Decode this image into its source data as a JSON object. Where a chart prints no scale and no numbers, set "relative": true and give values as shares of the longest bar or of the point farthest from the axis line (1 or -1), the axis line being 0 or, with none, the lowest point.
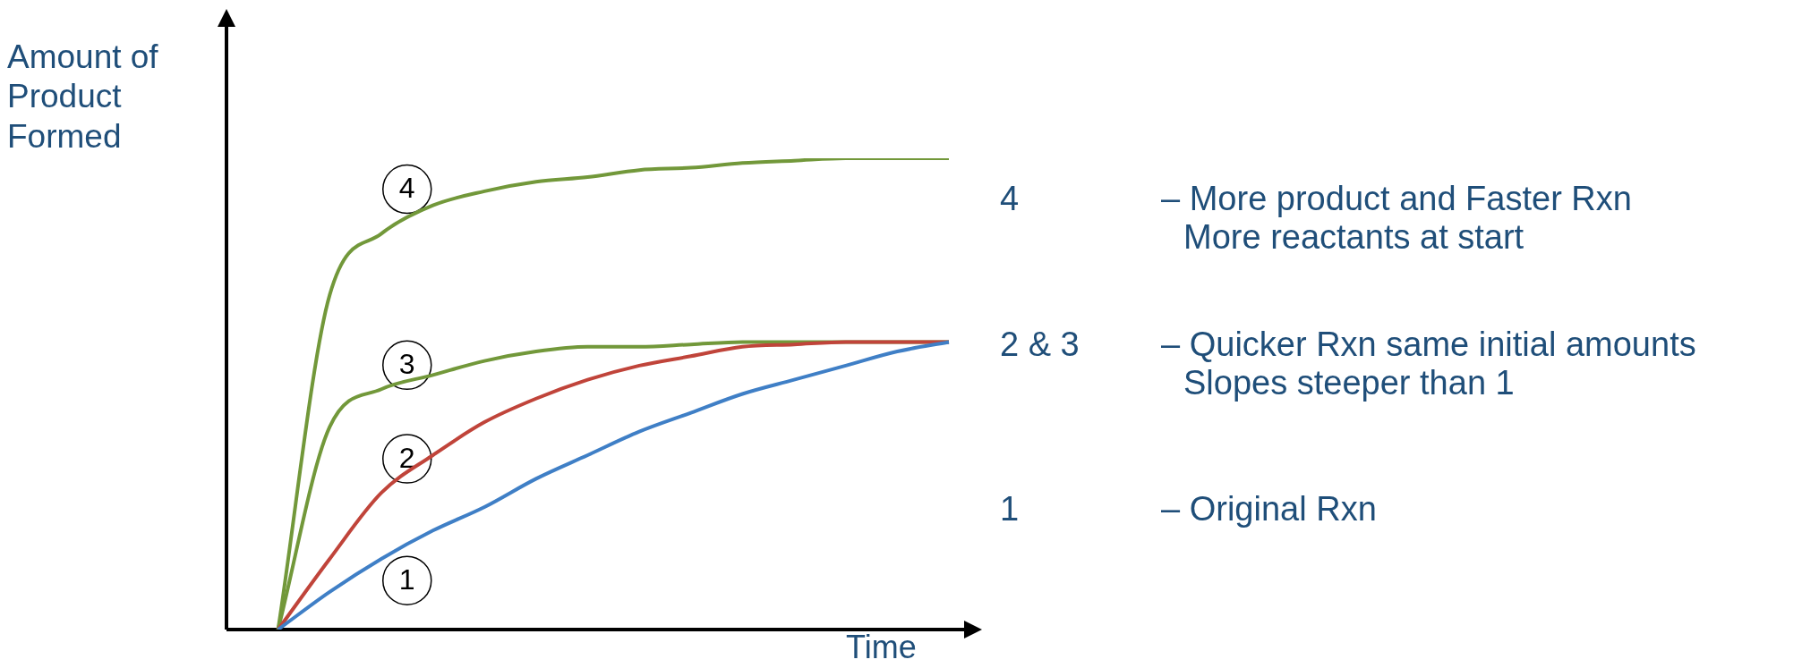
{
  "chart_data": {
    "type": "line",
    "relative": true,
    "xlabel": "Time",
    "ylabel": "Amount of Product Formed",
    "categories": [
      null,
      null,
      null,
      null,
      null,
      null,
      null,
      null,
      null,
      null,
      null,
      null,
      null,
      null,
      null
    ],
    "series": [
      {
        "name": "1",
        "color": "#3f7fc6",
        "values": [
          null,
          0,
          0.08,
          0.15,
          0.21,
          0.26,
          0.32,
          0.37,
          0.42,
          0.46,
          0.5,
          0.53,
          0.56,
          0.59,
          0.61
        ]
      },
      {
        "name": "2",
        "color": "#c0443a",
        "values": [
          null,
          0,
          0.15,
          0.29,
          0.37,
          0.44,
          0.49,
          0.53,
          0.56,
          0.58,
          0.6,
          0.605,
          0.61,
          0.61,
          0.61
        ]
      },
      {
        "name": "3",
        "color": "#72983a",
        "values": [
          null,
          0,
          0.43,
          0.51,
          0.54,
          0.57,
          0.59,
          0.6,
          0.6,
          0.605,
          0.61,
          0.61,
          0.61,
          0.61,
          0.61
        ]
      },
      {
        "name": "4",
        "color": "#72983a",
        "values": [
          null,
          0,
          0.71,
          0.84,
          0.9,
          0.93,
          0.95,
          0.96,
          0.975,
          0.98,
          0.99,
          0.995,
          1,
          1,
          1
        ]
      }
    ],
    "annotations": [
      "4",
      "– More product and Faster Rxn",
      "More reactants at start",
      "2 & 3",
      "– Quicker Rxn same initial amounts",
      "Slopes steeper than 1",
      "1",
      "– Original Rxn"
    ],
    "legend": false,
    "grid": false,
    "marker": "none",
    "line_style": "solid"
  }
}
